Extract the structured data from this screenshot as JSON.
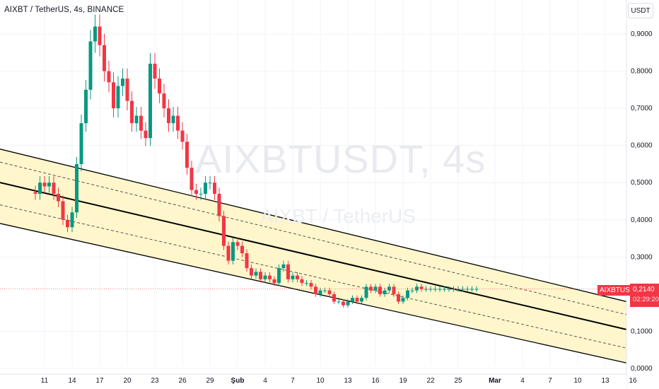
{
  "header": {
    "symbol_title": "AIXBT / TetherUS, 4s, BINANCE"
  },
  "currency_label": "USDT",
  "watermark": {
    "ticker": "AIXBTUSDT, 4s",
    "pair": "AIXBT / TetherUS"
  },
  "last_price": {
    "symbol_tag": "AIXBTUSDT",
    "value": "0,2140",
    "countdown": "02:29:20",
    "tag_color": "#f23645"
  },
  "colors": {
    "up_candle": "#089981",
    "down_candle": "#f23645",
    "channel_fill": "#fff6cc",
    "channel_line": "#000000",
    "grid": "#f0f3fa",
    "axis_text": "#131722"
  },
  "chart_data": {
    "type": "candlestick",
    "title": "AIXBT / TetherUS, 4s, BINANCE",
    "price_axis_labels": [
      "0,9000",
      "0,8000",
      "0,7000",
      "0,6000",
      "0,5000",
      "0,4000",
      "0,3000",
      "0,1000",
      "0,0000"
    ],
    "price_axis_values": [
      0.9,
      0.8,
      0.7,
      0.6,
      0.5,
      0.4,
      0.3,
      0.1,
      0.0
    ],
    "ylim": [
      0.0,
      0.98
    ],
    "time_axis_labels": [
      "11",
      "14",
      "17",
      "20",
      "23",
      "26",
      "29",
      "Şub",
      "4",
      "7",
      "10",
      "13",
      "16",
      "19",
      "22",
      "25",
      "Mar",
      "4",
      "7",
      "10",
      "13",
      "16"
    ],
    "time_axis_day_index": [
      0,
      3,
      6,
      9,
      12,
      15,
      18,
      21,
      24,
      27,
      30,
      33,
      36,
      39,
      42,
      45,
      49,
      52,
      55,
      58,
      61,
      64
    ],
    "last_price": 0.214,
    "series": [
      {
        "type": "ohlc",
        "x_day_index": [
          -1.0,
          -0.5,
          0.0,
          0.5,
          1.0,
          1.5,
          2.0,
          2.5,
          3.0,
          3.5,
          4.0,
          4.5,
          5.0,
          5.5,
          6.0,
          6.5,
          7.0,
          7.5,
          8.0,
          8.5,
          9.0,
          9.5,
          10.0,
          10.5,
          11.0,
          11.5,
          12.0,
          12.5,
          13.0,
          13.5,
          14.0,
          14.5,
          15.0,
          15.5,
          16.0,
          16.5,
          17.0,
          17.5,
          18.0,
          18.5,
          19.0,
          19.5,
          20.0,
          20.5,
          21.0,
          21.5,
          22.0,
          22.5,
          23.0,
          23.5,
          24.0,
          24.5,
          25.0,
          25.5,
          26.0,
          26.5,
          27.0,
          27.5,
          28.0,
          28.5,
          29.0,
          29.5,
          30.0,
          30.5,
          31.0,
          31.5,
          32.0,
          32.5,
          33.0,
          33.5,
          34.0,
          34.5,
          35.0,
          35.5,
          36.0,
          36.5,
          37.0,
          37.5,
          38.0,
          38.5,
          39.0,
          39.5,
          40.0,
          40.5,
          41.0,
          41.5,
          42.0,
          42.5,
          43.0,
          43.5,
          44.0,
          44.5,
          45.0,
          45.5,
          46.0,
          46.5,
          47.0
        ],
        "close": [
          0.47,
          0.5,
          0.49,
          0.5,
          0.47,
          0.45,
          0.4,
          0.38,
          0.42,
          0.55,
          0.66,
          0.75,
          0.88,
          0.92,
          0.87,
          0.8,
          0.77,
          0.7,
          0.76,
          0.78,
          0.72,
          0.66,
          0.68,
          0.64,
          0.62,
          0.82,
          0.78,
          0.74,
          0.7,
          0.66,
          0.68,
          0.64,
          0.61,
          0.54,
          0.48,
          0.47,
          0.47,
          0.5,
          0.5,
          0.47,
          0.41,
          0.33,
          0.29,
          0.34,
          0.33,
          0.31,
          0.27,
          0.25,
          0.26,
          0.24,
          0.25,
          0.24,
          0.23,
          0.27,
          0.28,
          0.24,
          0.25,
          0.24,
          0.23,
          0.23,
          0.22,
          0.2,
          0.21,
          0.21,
          0.2,
          0.18,
          0.18,
          0.17,
          0.18,
          0.19,
          0.18,
          0.19,
          0.22,
          0.21,
          0.22,
          0.2,
          0.21,
          0.22,
          0.2,
          0.18,
          0.19,
          0.21,
          0.21,
          0.22,
          0.214,
          0.214,
          0.214,
          0.214,
          0.214,
          0.214,
          0.214,
          0.214,
          0.214,
          0.214,
          0.214,
          0.214,
          0.214
        ]
      }
    ],
    "regression_channel": {
      "upper_start": 0.59,
      "upper_end": 0.18,
      "upper_dashed_start": 0.555,
      "upper_dashed_end": 0.145,
      "middle_start": 0.5,
      "middle_end": 0.105,
      "lower_dashed_start": 0.44,
      "lower_dashed_end": 0.055,
      "lower_start": 0.39,
      "lower_end": 0.015
    },
    "grid": true,
    "legend": "none"
  }
}
